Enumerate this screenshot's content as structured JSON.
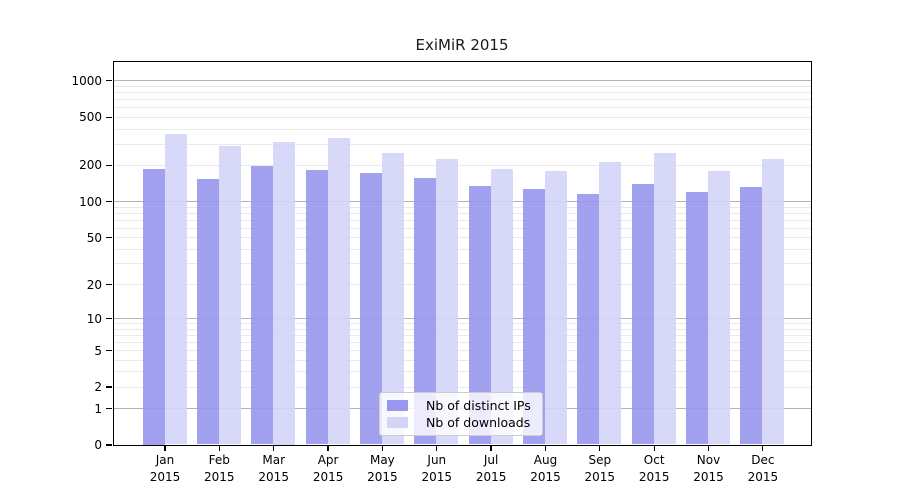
{
  "title": "ExiMiR 2015",
  "chart_data": {
    "type": "bar",
    "title": "ExiMiR 2015",
    "categories": [
      "Jan",
      "Feb",
      "Mar",
      "Apr",
      "May",
      "Jun",
      "Jul",
      "Aug",
      "Sep",
      "Oct",
      "Nov",
      "Dec"
    ],
    "year": "2015",
    "series": [
      {
        "name": "Nb of distinct IPs",
        "color": "#9797ee",
        "values": [
          185,
          154,
          197,
          180,
          172,
          155,
          133,
          127,
          114,
          138,
          119,
          131
        ]
      },
      {
        "name": "Nb of downloads",
        "color": "#d4d4f7",
        "values": [
          361,
          286,
          312,
          331,
          253,
          225,
          186,
          179,
          210,
          252,
          177,
          224
        ]
      }
    ],
    "yticks": [
      0,
      1,
      2,
      5,
      10,
      20,
      50,
      100,
      200,
      500,
      1000
    ],
    "scale": "log1p",
    "xlabel": "",
    "ylabel": "",
    "grid": "horizontal",
    "legend_position": "inside-bottom-center",
    "ylim": [
      0,
      1500
    ],
    "major_grid_values": [
      1,
      10,
      100,
      1000
    ],
    "colors": {
      "major_grid": "#b3b3b3",
      "minor_grid": "#e9e9e9",
      "frame": "#000000",
      "background": "#ffffff",
      "text": "#1a1a1a"
    }
  }
}
